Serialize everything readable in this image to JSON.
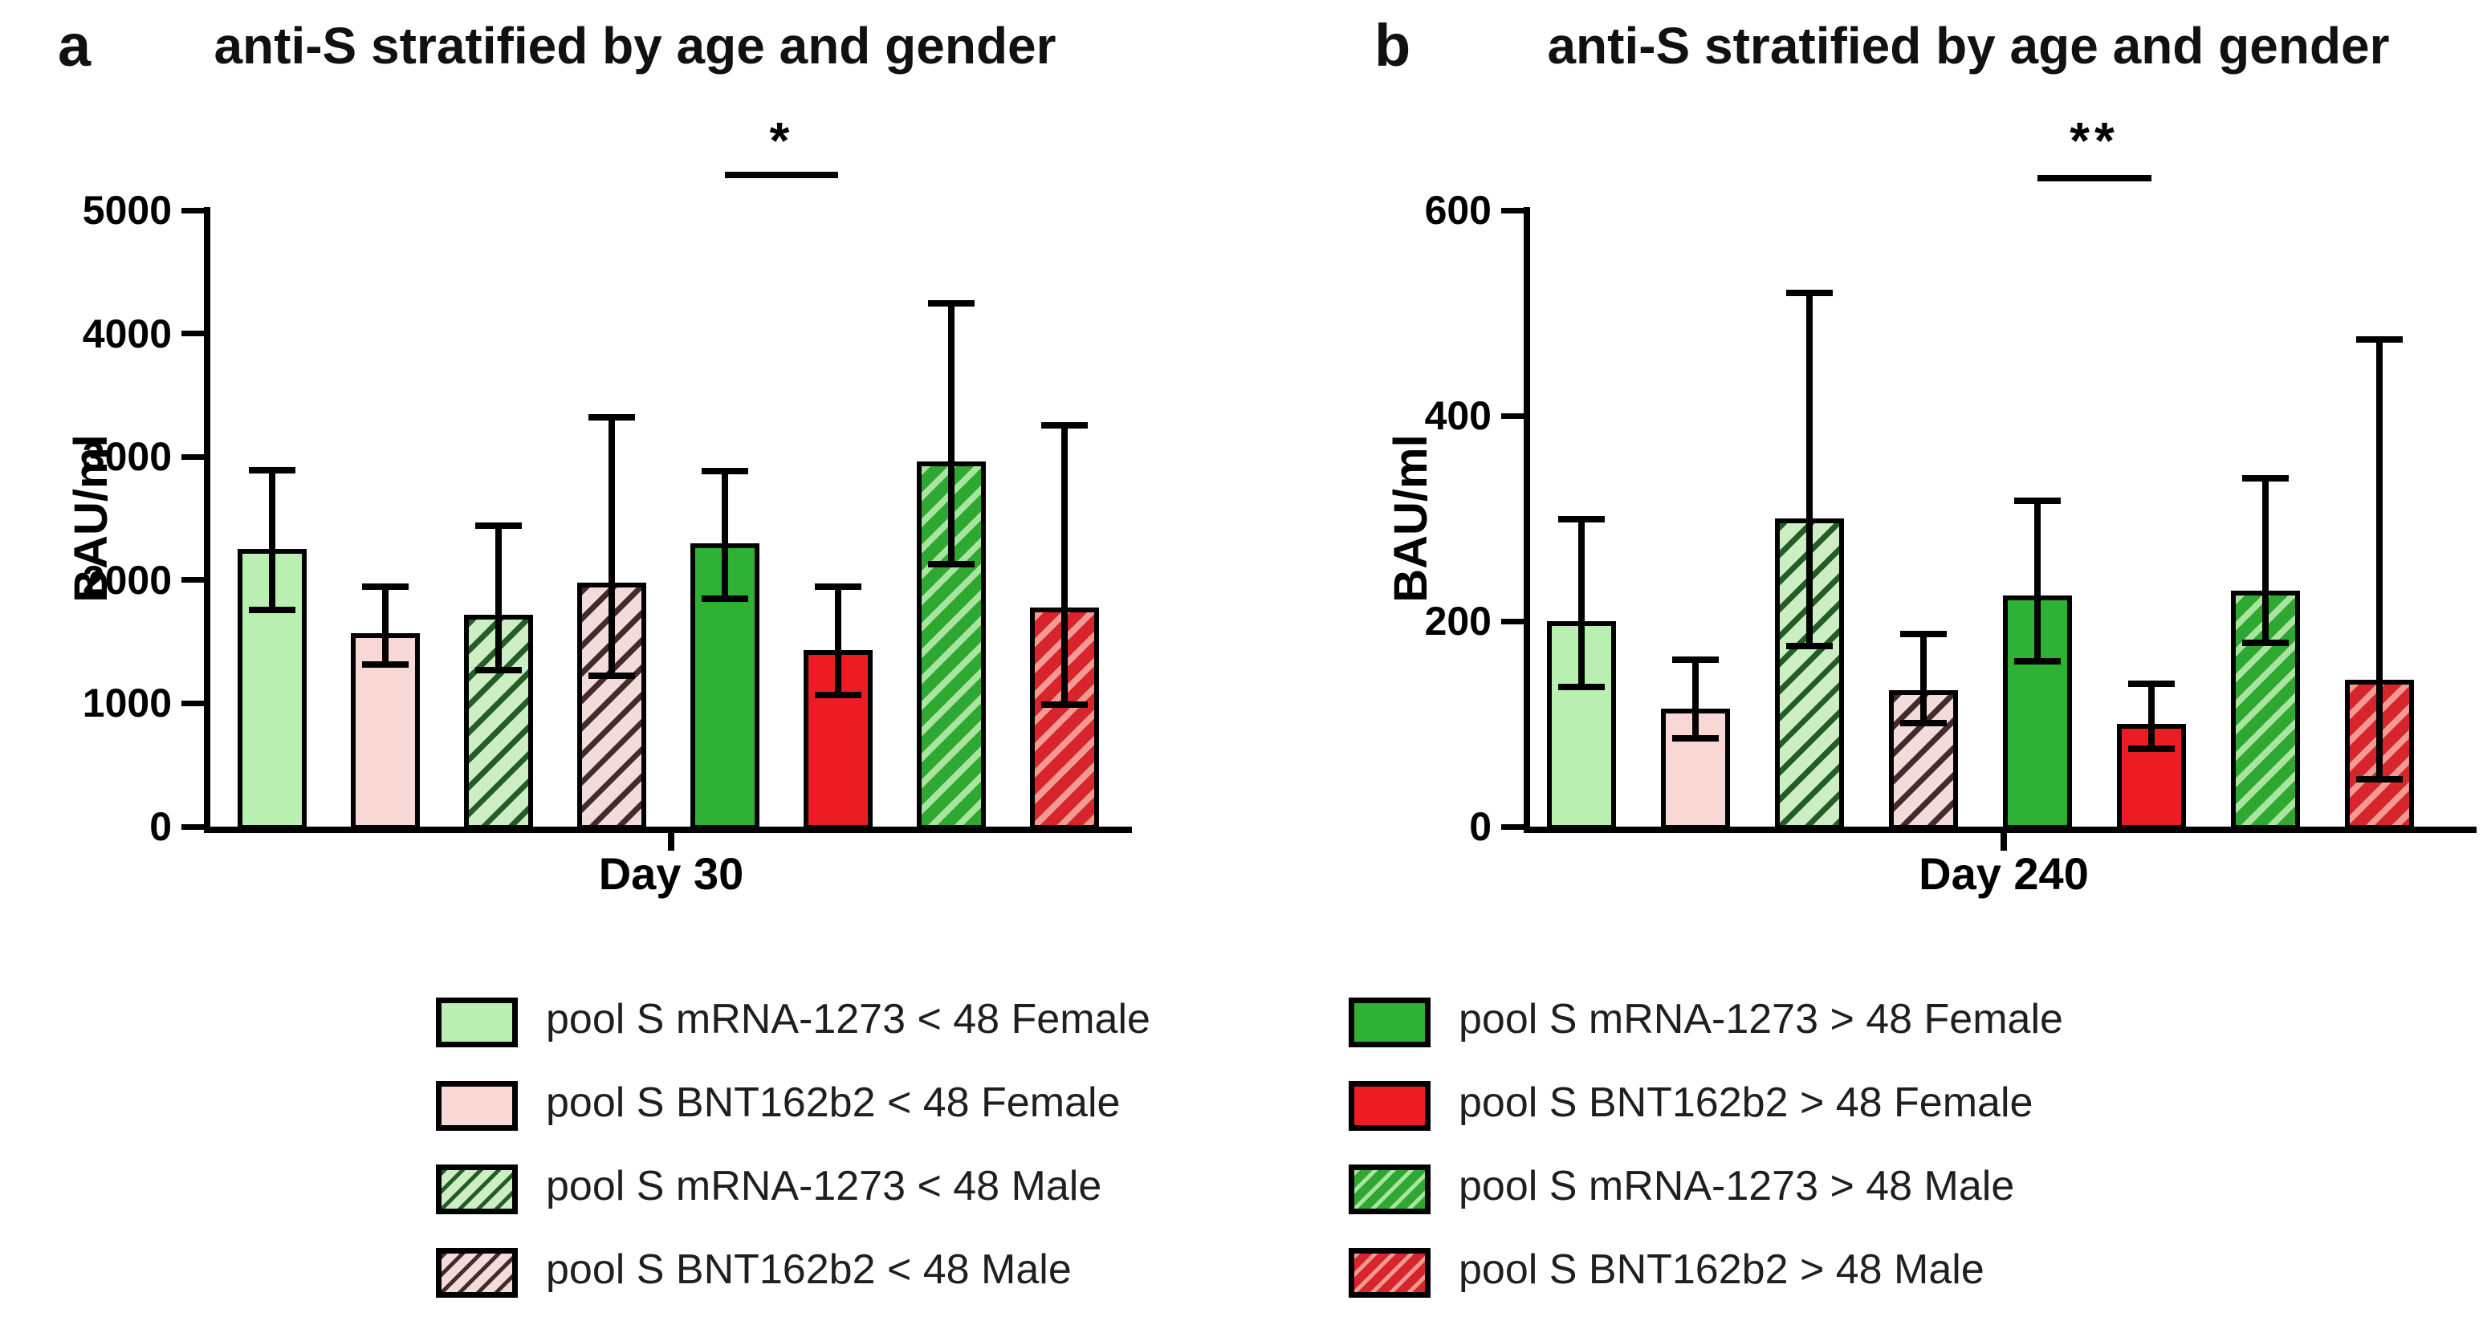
{
  "chart_data": [
    {
      "type": "bar",
      "panel_label": "a",
      "title": "anti-S stratified by age and gender",
      "xlabel": "Day 30",
      "ylabel": "BAU/ml",
      "ylim": [
        0,
        5000
      ],
      "yticks": [
        0,
        1000,
        2000,
        3000,
        4000,
        5000
      ],
      "grid": "off",
      "series": [
        {
          "name": "pool S mRNA-1273 < 48 Female",
          "style": "lightgreen_solid",
          "value": 2250,
          "err_low": 1750,
          "err_high": 2900
        },
        {
          "name": "pool S BNT162b2 < 48 Female",
          "style": "lightpink_solid",
          "value": 1570,
          "err_low": 1310,
          "err_high": 1950
        },
        {
          "name": "pool S mRNA-1273 < 48 Male",
          "style": "lightgreen_hatch",
          "value": 1720,
          "err_low": 1260,
          "err_high": 2450
        },
        {
          "name": "pool S BNT162b2 < 48 Male",
          "style": "lightpink_hatch",
          "value": 1980,
          "err_low": 1220,
          "err_high": 3330
        },
        {
          "name": "pool S mRNA-1273 > 48 Female",
          "style": "green_solid",
          "value": 2300,
          "err_low": 1840,
          "err_high": 2890
        },
        {
          "name": "pool S BNT162b2 > 48 Female",
          "style": "red_solid",
          "value": 1430,
          "err_low": 1060,
          "err_high": 1950
        },
        {
          "name": "pool S mRNA-1273 > 48 Male",
          "style": "green_hatch",
          "value": 2960,
          "err_low": 2120,
          "err_high": 4250
        },
        {
          "name": "pool S BNT162b2 > 48 Male",
          "style": "red_hatch",
          "value": 1780,
          "err_low": 980,
          "err_high": 3260
        }
      ],
      "significance": {
        "text": "*",
        "bar_start": 5,
        "bar_end": 6
      }
    },
    {
      "type": "bar",
      "panel_label": "b",
      "title": "anti-S stratified by age and gender",
      "xlabel": "Day 240",
      "ylabel": "BAU/ml",
      "ylim": [
        0,
        600
      ],
      "yticks": [
        0,
        200,
        400,
        600
      ],
      "grid": "off",
      "series": [
        {
          "name": "pool S mRNA-1273 < 48 Female",
          "style": "lightgreen_solid",
          "value": 200,
          "err_low": 135,
          "err_high": 300
        },
        {
          "name": "pool S BNT162b2 < 48 Female",
          "style": "lightpink_solid",
          "value": 115,
          "err_low": 85,
          "err_high": 163
        },
        {
          "name": "pool S mRNA-1273 < 48 Male",
          "style": "lightgreen_hatch",
          "value": 300,
          "err_low": 175,
          "err_high": 520
        },
        {
          "name": "pool S BNT162b2 < 48 Male",
          "style": "lightpink_hatch",
          "value": 133,
          "err_low": 100,
          "err_high": 188
        },
        {
          "name": "pool S mRNA-1273 > 48 Female",
          "style": "green_solid",
          "value": 225,
          "err_low": 160,
          "err_high": 318
        },
        {
          "name": "pool S BNT162b2 > 48 Female",
          "style": "red_solid",
          "value": 100,
          "err_low": 75,
          "err_high": 140
        },
        {
          "name": "pool S mRNA-1273 > 48 Male",
          "style": "green_hatch",
          "value": 230,
          "err_low": 178,
          "err_high": 340
        },
        {
          "name": "pool S BNT162b2 > 48 Male",
          "style": "red_hatch",
          "value": 143,
          "err_low": 45,
          "err_high": 475
        }
      ],
      "significance": {
        "text": "**",
        "bar_start": 5,
        "bar_end": 6
      }
    }
  ],
  "legend": {
    "columns": [
      [
        {
          "label": "pool S mRNA-1273 < 48 Female",
          "style": "lightgreen_solid"
        },
        {
          "label": "pool S BNT162b2 < 48 Female",
          "style": "lightpink_solid"
        },
        {
          "label": "pool S mRNA-1273 < 48 Male",
          "style": "lightgreen_hatch"
        },
        {
          "label": "pool S BNT162b2 < 48 Male",
          "style": "lightpink_hatch"
        }
      ],
      [
        {
          "label": "pool S mRNA-1273 > 48 Female",
          "style": "green_solid"
        },
        {
          "label": "pool S BNT162b2 > 48 Female",
          "style": "red_solid"
        },
        {
          "label": "pool S mRNA-1273 > 48 Male",
          "style": "green_hatch"
        },
        {
          "label": "pool S BNT162b2 > 48 Male",
          "style": "red_hatch"
        }
      ]
    ]
  },
  "styles": {
    "lightgreen_solid": {
      "fill": "#b9f0b1"
    },
    "lightpink_solid": {
      "fill": "#f9d7d5"
    },
    "lightgreen_hatch": {
      "fill": "#cdeec5",
      "hatch": "#235c24",
      "stripe": 7,
      "period": 24
    },
    "lightpink_hatch": {
      "fill": "#f2dcda",
      "hatch": "#452a2c",
      "stripe": 7,
      "period": 24
    },
    "green_solid": {
      "fill": "#2eb135"
    },
    "red_solid": {
      "fill": "#ec1c24"
    },
    "green_hatch": {
      "fill": "#2fa832",
      "hatch": "#a9e5a0",
      "stripe": 8,
      "period": 23
    },
    "red_hatch": {
      "fill": "#d8252c",
      "hatch": "#f29a94",
      "stripe": 8,
      "period": 23
    }
  },
  "colors": {
    "axis": "#000000",
    "text": "#111111"
  }
}
